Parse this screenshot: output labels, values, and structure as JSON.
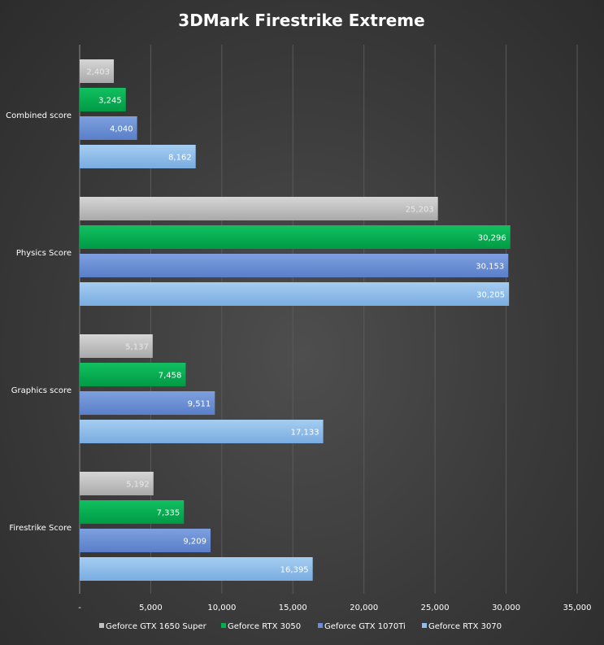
{
  "chart_data": {
    "type": "bar",
    "orientation": "horizontal",
    "title": "3DMark Firestrike Extreme",
    "xlabel": "",
    "ylabel": "",
    "xlim": [
      0,
      35000
    ],
    "grid": "vertical gridlines on",
    "legend_position": "bottom",
    "categories": [
      "Combined score",
      "Physics Score",
      "Graphics score",
      "Firestrike Score"
    ],
    "tick_labels": [
      "-",
      "5,000",
      "10,000",
      "15,000",
      "20,000",
      "25,000",
      "30,000",
      "35,000"
    ],
    "series": [
      {
        "name": "Geforce GTX 1650 Super",
        "color": "#c0c0c0",
        "values": [
          2403,
          25203,
          5137,
          5192
        ],
        "labels": [
          "2,403",
          "25,203",
          "5,137",
          "5,192"
        ]
      },
      {
        "name": "Geforce RTX 3050",
        "color": "#00b050",
        "values": [
          3245,
          30296,
          7458,
          7335
        ],
        "labels": [
          "3,245",
          "30,296",
          "7,458",
          "7,335"
        ]
      },
      {
        "name": "Geforce GTX 1070Ti",
        "color": "#6a8fd6",
        "values": [
          4040,
          30153,
          9511,
          9209
        ],
        "labels": [
          "4,040",
          "30,153",
          "9,511",
          "9,209"
        ]
      },
      {
        "name": "Geforce RTX 3070",
        "color": "#8fbde9",
        "values": [
          8162,
          30205,
          17133,
          16395
        ],
        "labels": [
          "8,162",
          "30,205",
          "17,133",
          "16,395"
        ]
      }
    ]
  }
}
